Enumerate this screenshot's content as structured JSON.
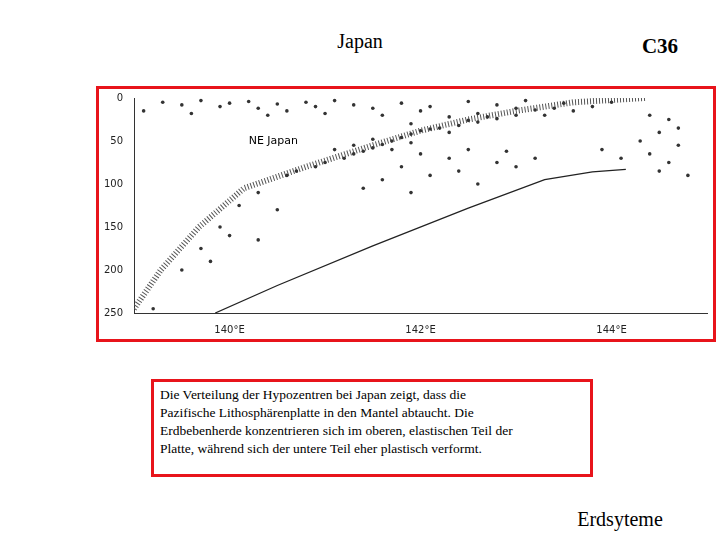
{
  "header": {
    "title": "Japan",
    "code": "C36"
  },
  "chart_data": {
    "type": "scatter",
    "xlim": [
      139,
      145
    ],
    "xticks": [
      {
        "value": 140,
        "label": "140°E"
      },
      {
        "value": 142,
        "label": "142°E"
      },
      {
        "value": 144,
        "label": "144°E"
      }
    ],
    "ylim": [
      0,
      250
    ],
    "yticks": [
      0,
      50,
      100,
      150,
      200,
      250
    ],
    "grid": false,
    "annotations": [
      {
        "text": "NE Japan",
        "x": 140.2,
        "y": 50
      }
    ],
    "series": [
      {
        "type": "scatter",
        "color": "#333333",
        "marker": "circle",
        "x": [
          139.3,
          139.5,
          139.7,
          139.9,
          140.0,
          140.2,
          140.3,
          140.5,
          140.6,
          140.8,
          140.9,
          141.0,
          141.1,
          141.3,
          141.5,
          141.6,
          141.8,
          142.0,
          142.1,
          142.3,
          142.5,
          142.6,
          142.8,
          143.0,
          143.1,
          143.3,
          143.5,
          143.6,
          143.8,
          144.0,
          139.1,
          139.6,
          140.4,
          143.2,
          143.0,
          142.8,
          142.6,
          142.4,
          142.2,
          142.0,
          141.9,
          141.8,
          141.7,
          141.6,
          141.5,
          141.4,
          141.3,
          141.2,
          141.0,
          140.9,
          140.7,
          140.6,
          142.5,
          142.3,
          142.1,
          141.9,
          141.7,
          141.5,
          141.3,
          141.1,
          141.9,
          142.7,
          143.4,
          142.0,
          142.3,
          142.5,
          142.8,
          141.8,
          142.1,
          141.6,
          142.4,
          142.9,
          143.2,
          143.0,
          142.6,
          141.4,
          141.9,
          140.3,
          140.1,
          139.9,
          140.0,
          139.7,
          139.5,
          139.2,
          140.3,
          139.8,
          140.5,
          144.4,
          144.6,
          144.5,
          144.7,
          144.4,
          144.6,
          144.5,
          144.8,
          144.3,
          144.7,
          143.9,
          144.1
        ],
        "values": [
          5,
          8,
          3,
          10,
          6,
          4,
          12,
          7,
          15,
          5,
          10,
          18,
          3,
          8,
          12,
          20,
          6,
          15,
          10,
          22,
          4,
          18,
          8,
          12,
          3,
          20,
          6,
          15,
          10,
          5,
          15,
          18,
          20,
          14,
          20,
          24,
          28,
          32,
          35,
          38,
          42,
          46,
          50,
          54,
          58,
          62,
          65,
          70,
          75,
          80,
          85,
          90,
          26,
          40,
          36,
          52,
          60,
          48,
          55,
          60,
          30,
          22,
          12,
          65,
          70,
          60,
          75,
          80,
          90,
          95,
          85,
          62,
          70,
          80,
          100,
          105,
          110,
          110,
          125,
          150,
          160,
          175,
          200,
          245,
          165,
          190,
          130,
          20,
          25,
          40,
          55,
          65,
          75,
          85,
          90,
          50,
          35,
          60,
          70
        ]
      },
      {
        "type": "line",
        "color": "#555555",
        "line_style": "hatched",
        "x": [
          144.35,
          143.6,
          143.0,
          142.5,
          142.0,
          141.5,
          140.8,
          140.15,
          139.68,
          139.28,
          139.0
        ],
        "values": [
          0,
          5,
          15,
          25,
          38,
          55,
          80,
          105,
          150,
          200,
          245
        ]
      },
      {
        "type": "line",
        "color": "#222222",
        "line_style": "solid",
        "x": [
          144.15,
          143.8,
          143.3,
          142.5,
          141.5,
          140.5,
          139.85
        ],
        "values": [
          83,
          86,
          95,
          128,
          172,
          218,
          250
        ]
      }
    ]
  },
  "caption": [
    "Die Verteilung der Hypozentren bei Japan zeigt, dass die",
    "Pazifische Lithosphärenplatte in den Mantel abtaucht. Die",
    "Erdbebenherde konzentrieren sich im oberen, elastischen Teil der",
    "Platte, während sich der untere Teil eher plastisch verformt."
  ],
  "footer": "Erdsyteme"
}
